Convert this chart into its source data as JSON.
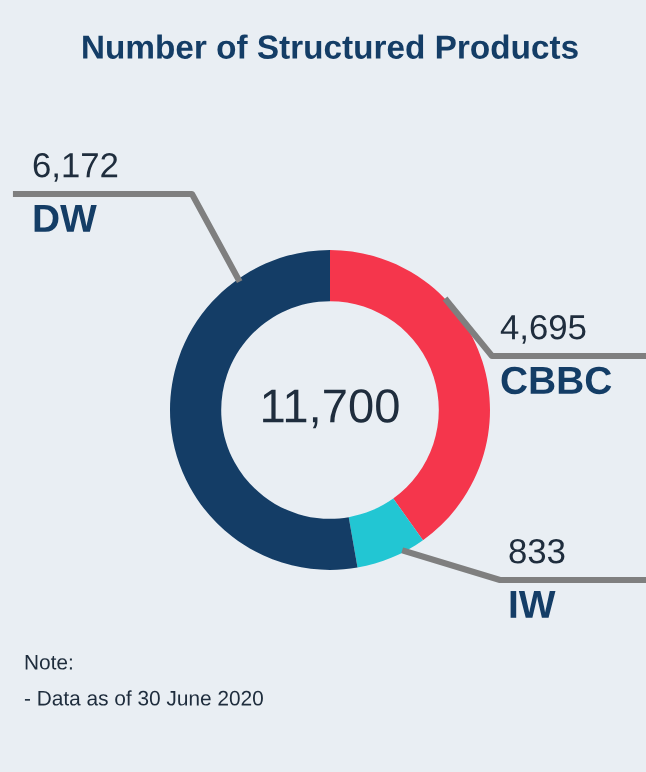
{
  "chart_data": {
    "type": "donut",
    "title": "Number of Structured Products",
    "categories": [
      "CBBC",
      "IW",
      "DW"
    ],
    "values": [
      4695,
      833,
      6172
    ],
    "colors": [
      "#f5364c",
      "#22c6d3",
      "#143d66"
    ],
    "value_labels": [
      "4,695",
      "833",
      "6,172"
    ],
    "annotations": [
      "11,700",
      "Note:",
      "- Data as of 30 June 2020"
    ]
  }
}
